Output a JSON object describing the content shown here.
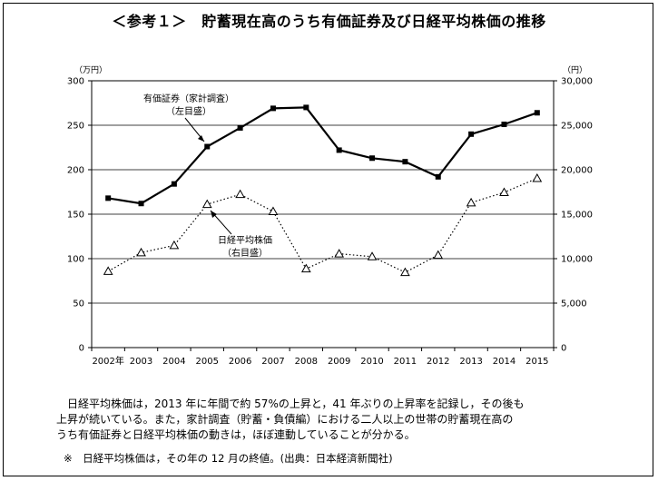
{
  "title": "＜参考１＞　貯蓄現在高のうち有価証券及び日経平均株価の推移",
  "caption_lines": [
    "　日経平均株価は，2013 年に年間で約 57%の上昇と，41 年ぶりの上昇率を記録し，その後も",
    "上昇が続いている。また，家計調査（貯蓄・負債編）における二人以上の世帯の貯蓄現在高の",
    "うち有価証券と日経平均株価の動きは，ほぼ連動していることが分かる。"
  ],
  "note": "※　日経平均株価は，その年の 12 月の終値。(出典：日本経済新聞社)",
  "chart_data": {
    "type": "line",
    "x": [
      "2002年",
      "2003",
      "2004",
      "2005",
      "2006",
      "2007",
      "2008",
      "2009",
      "2010",
      "2011",
      "2012",
      "2013",
      "2014",
      "2015"
    ],
    "left_axis": {
      "unit": "（万円）",
      "ylim": [
        0,
        300
      ],
      "ticks": [
        0,
        50,
        100,
        150,
        200,
        250,
        300
      ]
    },
    "right_axis": {
      "unit": "（円）",
      "ylim": [
        0,
        30000
      ],
      "ticks": [
        "0",
        "5,000",
        "10,000",
        "15,000",
        "20,000",
        "25,000",
        "30,000"
      ]
    },
    "grid": true,
    "series": [
      {
        "name_lines": [
          "有価証券（家計調査）",
          "（左目盛）"
        ],
        "axis": "left",
        "style": "solid-square",
        "values": [
          168,
          162,
          184,
          226,
          247,
          269,
          270,
          222,
          213,
          209,
          192,
          240,
          251,
          264
        ]
      },
      {
        "name_lines": [
          "日経平均株価",
          "（右目盛）"
        ],
        "axis": "right",
        "style": "dotted-triangle",
        "values": [
          8579,
          10677,
          11489,
          16111,
          17226,
          15308,
          8860,
          10546,
          10229,
          8455,
          10395,
          16291,
          17451,
          19034
        ]
      }
    ]
  }
}
